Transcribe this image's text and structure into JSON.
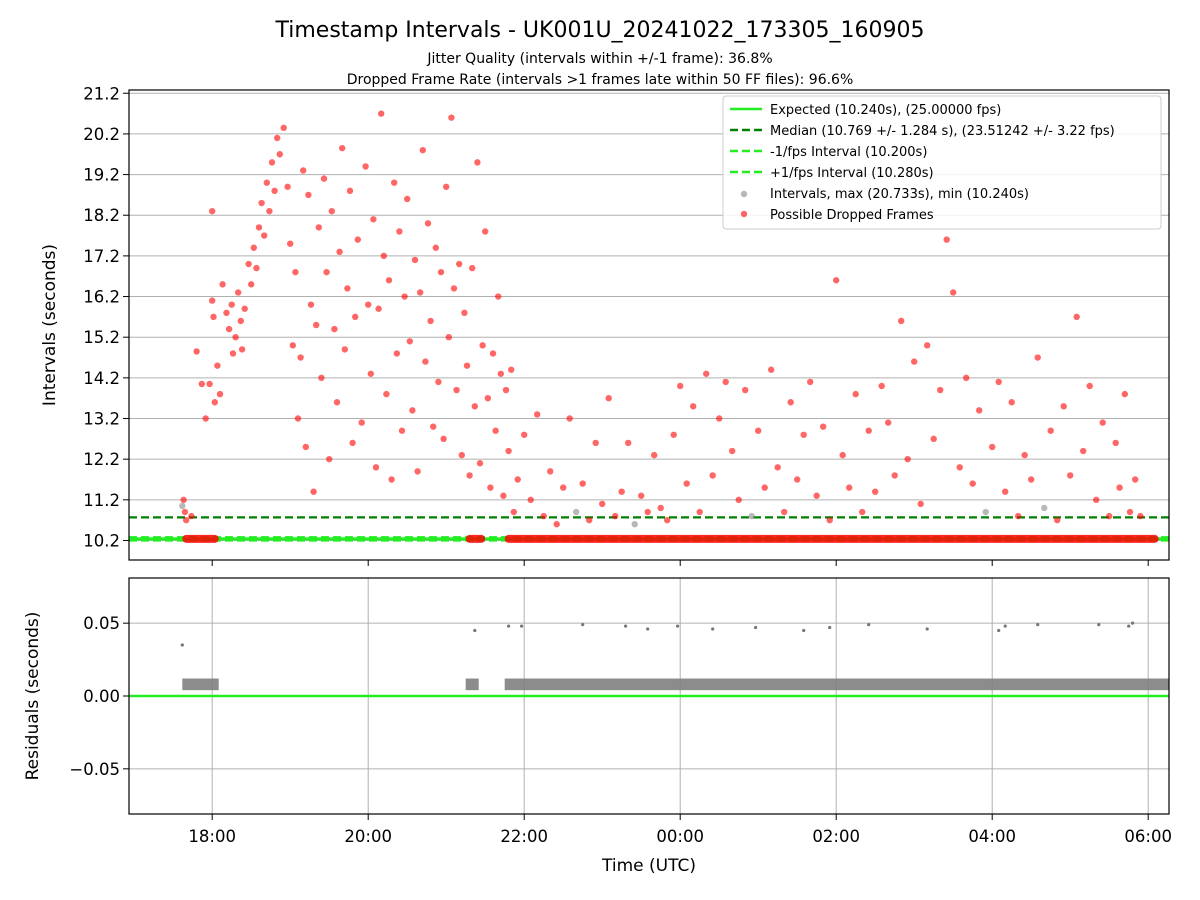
{
  "chart_data": [
    {
      "type": "scatter",
      "title": "Timestamp Intervals - UK001U_20241022_173305_160905",
      "subtitle_lines": [
        "Jitter Quality (intervals within +/-1 frame): 36.8%",
        "Dropped Frame Rate (intervals >1 frames late within 50 FF files): 96.6%"
      ],
      "xlabel": "",
      "ylabel": "Intervals (seconds)",
      "x_axis": {
        "unit": "time (UTC)",
        "range": [
          "16:56",
          "06:16"
        ]
      },
      "ylim": [
        9.72,
        21.28
      ],
      "yticks": [
        "10.2",
        "11.2",
        "12.2",
        "13.2",
        "14.2",
        "15.2",
        "16.2",
        "17.2",
        "18.2",
        "19.2",
        "20.2",
        "21.2"
      ],
      "grid": true,
      "legend_position": "top-right",
      "reference_lines": [
        {
          "label": "Expected (10.240s), (25.00000 fps)",
          "y": 10.24,
          "style": "solid",
          "color": "#22ee22"
        },
        {
          "label": "Median (10.769 +/- 1.284 s), (23.51242 +/- 3.22 fps)",
          "y": 10.769,
          "style": "dashed",
          "color": "#008000"
        },
        {
          "label": "-1/fps Interval (10.200s)",
          "y": 10.2,
          "style": "dashed",
          "color": "#22ee22"
        },
        {
          "label": "+1/fps Interval (10.280s)",
          "y": 10.28,
          "style": "dashed",
          "color": "#22ee22"
        }
      ],
      "scatter_series": [
        {
          "label": "Intervals, max (20.733s), min (10.240s)",
          "color": "#888888"
        },
        {
          "label": "Possible Dropped Frames",
          "color": "#ff0000"
        }
      ],
      "points": [
        [
          "17:37",
          11.05
        ],
        [
          "17:38",
          11.2
        ],
        [
          "17:39",
          10.9
        ],
        [
          "17:40",
          10.7
        ],
        [
          "17:44",
          10.8
        ],
        [
          "17:48",
          14.85
        ],
        [
          "17:52",
          14.05
        ],
        [
          "17:55",
          13.2
        ],
        [
          "17:58",
          14.05
        ],
        [
          "18:00",
          16.1
        ],
        [
          "18:00",
          18.3
        ],
        [
          "18:01",
          15.7
        ],
        [
          "18:02",
          13.6
        ],
        [
          "18:04",
          14.5
        ],
        [
          "18:06",
          13.8
        ],
        [
          "18:08",
          16.5
        ],
        [
          "18:11",
          15.8
        ],
        [
          "18:13",
          15.4
        ],
        [
          "18:15",
          16.0
        ],
        [
          "18:16",
          14.8
        ],
        [
          "18:18",
          15.2
        ],
        [
          "18:20",
          16.3
        ],
        [
          "18:22",
          15.6
        ],
        [
          "18:23",
          14.9
        ],
        [
          "18:25",
          15.9
        ],
        [
          "18:28",
          17.0
        ],
        [
          "18:30",
          16.5
        ],
        [
          "18:32",
          17.4
        ],
        [
          "18:34",
          16.9
        ],
        [
          "18:36",
          17.9
        ],
        [
          "18:38",
          18.5
        ],
        [
          "18:40",
          17.7
        ],
        [
          "18:42",
          19.0
        ],
        [
          "18:44",
          18.3
        ],
        [
          "18:46",
          19.5
        ],
        [
          "18:48",
          18.8
        ],
        [
          "18:50",
          20.1
        ],
        [
          "18:52",
          19.7
        ],
        [
          "18:55",
          20.35
        ],
        [
          "18:58",
          18.9
        ],
        [
          "19:00",
          17.5
        ],
        [
          "19:02",
          15.0
        ],
        [
          "19:04",
          16.8
        ],
        [
          "19:06",
          13.2
        ],
        [
          "19:08",
          14.7
        ],
        [
          "19:10",
          19.3
        ],
        [
          "19:12",
          12.5
        ],
        [
          "19:14",
          18.7
        ],
        [
          "19:16",
          16.0
        ],
        [
          "19:18",
          11.4
        ],
        [
          "19:20",
          15.5
        ],
        [
          "19:22",
          17.9
        ],
        [
          "19:24",
          14.2
        ],
        [
          "19:26",
          19.1
        ],
        [
          "19:28",
          16.8
        ],
        [
          "19:30",
          12.2
        ],
        [
          "19:32",
          18.3
        ],
        [
          "19:34",
          15.4
        ],
        [
          "19:36",
          13.6
        ],
        [
          "19:38",
          17.3
        ],
        [
          "19:40",
          19.85
        ],
        [
          "19:42",
          14.9
        ],
        [
          "19:44",
          16.4
        ],
        [
          "19:46",
          18.8
        ],
        [
          "19:48",
          12.6
        ],
        [
          "19:50",
          15.7
        ],
        [
          "19:52",
          17.6
        ],
        [
          "19:55",
          13.1
        ],
        [
          "19:58",
          19.4
        ],
        [
          "20:00",
          16.0
        ],
        [
          "20:02",
          14.3
        ],
        [
          "20:04",
          18.1
        ],
        [
          "20:06",
          12.0
        ],
        [
          "20:08",
          15.9
        ],
        [
          "20:10",
          20.7
        ],
        [
          "20:12",
          17.2
        ],
        [
          "20:14",
          13.8
        ],
        [
          "20:16",
          16.6
        ],
        [
          "20:18",
          11.7
        ],
        [
          "20:20",
          19.0
        ],
        [
          "20:22",
          14.8
        ],
        [
          "20:24",
          17.8
        ],
        [
          "20:26",
          12.9
        ],
        [
          "20:28",
          16.2
        ],
        [
          "20:30",
          18.6
        ],
        [
          "20:32",
          15.1
        ],
        [
          "20:34",
          13.4
        ],
        [
          "20:36",
          17.1
        ],
        [
          "20:38",
          11.9
        ],
        [
          "20:40",
          16.3
        ],
        [
          "20:42",
          19.8
        ],
        [
          "20:44",
          14.6
        ],
        [
          "20:46",
          18.0
        ],
        [
          "20:48",
          15.6
        ],
        [
          "20:50",
          13.0
        ],
        [
          "20:52",
          17.4
        ],
        [
          "20:54",
          14.1
        ],
        [
          "20:56",
          16.8
        ],
        [
          "20:58",
          12.7
        ],
        [
          "21:00",
          18.9
        ],
        [
          "21:02",
          15.2
        ],
        [
          "21:04",
          20.6
        ],
        [
          "21:06",
          16.4
        ],
        [
          "21:08",
          13.9
        ],
        [
          "21:10",
          17.0
        ],
        [
          "21:12",
          12.3
        ],
        [
          "21:14",
          15.8
        ],
        [
          "21:16",
          14.5
        ],
        [
          "21:18",
          11.8
        ],
        [
          "21:20",
          16.9
        ],
        [
          "21:22",
          13.5
        ],
        [
          "21:24",
          19.5
        ],
        [
          "21:26",
          12.1
        ],
        [
          "21:28",
          15.0
        ],
        [
          "21:30",
          17.8
        ],
        [
          "21:32",
          13.7
        ],
        [
          "21:34",
          11.5
        ],
        [
          "21:36",
          14.8
        ],
        [
          "21:38",
          12.9
        ],
        [
          "21:40",
          16.2
        ],
        [
          "21:42",
          14.3
        ],
        [
          "21:44",
          11.3
        ],
        [
          "21:46",
          13.9
        ],
        [
          "21:48",
          12.4
        ],
        [
          "21:50",
          14.4
        ],
        [
          "21:52",
          10.9
        ],
        [
          "21:55",
          11.7
        ],
        [
          "22:00",
          12.8
        ],
        [
          "22:05",
          11.2
        ],
        [
          "22:10",
          13.3
        ],
        [
          "22:15",
          10.8
        ],
        [
          "22:20",
          11.9
        ],
        [
          "22:25",
          10.6
        ],
        [
          "22:30",
          11.5
        ],
        [
          "22:35",
          13.2
        ],
        [
          "22:40",
          10.9
        ],
        [
          "22:45",
          11.6
        ],
        [
          "22:50",
          10.7
        ],
        [
          "22:55",
          12.6
        ],
        [
          "23:00",
          11.1
        ],
        [
          "23:05",
          13.7
        ],
        [
          "23:10",
          10.8
        ],
        [
          "23:15",
          11.4
        ],
        [
          "23:20",
          12.6
        ],
        [
          "23:25",
          10.6
        ],
        [
          "23:30",
          11.3
        ],
        [
          "23:35",
          10.9
        ],
        [
          "23:40",
          12.3
        ],
        [
          "23:45",
          11.0
        ],
        [
          "23:50",
          10.7
        ],
        [
          "23:55",
          12.8
        ],
        [
          "00:00",
          14.0
        ],
        [
          "00:05",
          11.6
        ],
        [
          "00:10",
          13.5
        ],
        [
          "00:15",
          10.9
        ],
        [
          "00:20",
          14.3
        ],
        [
          "00:25",
          11.8
        ],
        [
          "00:30",
          13.2
        ],
        [
          "00:35",
          14.1
        ],
        [
          "00:40",
          12.4
        ],
        [
          "00:45",
          11.2
        ],
        [
          "00:50",
          13.9
        ],
        [
          "00:55",
          10.8
        ],
        [
          "01:00",
          12.9
        ],
        [
          "01:05",
          11.5
        ],
        [
          "01:10",
          14.4
        ],
        [
          "01:15",
          12.0
        ],
        [
          "01:20",
          10.9
        ],
        [
          "01:25",
          13.6
        ],
        [
          "01:30",
          11.7
        ],
        [
          "01:35",
          12.8
        ],
        [
          "01:40",
          14.1
        ],
        [
          "01:45",
          11.3
        ],
        [
          "01:50",
          13.0
        ],
        [
          "01:55",
          10.7
        ],
        [
          "02:00",
          16.6
        ],
        [
          "02:05",
          12.3
        ],
        [
          "02:10",
          11.5
        ],
        [
          "02:15",
          13.8
        ],
        [
          "02:20",
          10.9
        ],
        [
          "02:25",
          12.9
        ],
        [
          "02:30",
          11.4
        ],
        [
          "02:35",
          14.0
        ],
        [
          "02:40",
          13.1
        ],
        [
          "02:45",
          11.8
        ],
        [
          "02:50",
          15.6
        ],
        [
          "02:55",
          12.2
        ],
        [
          "03:00",
          14.6
        ],
        [
          "03:05",
          11.1
        ],
        [
          "03:10",
          15.0
        ],
        [
          "03:15",
          12.7
        ],
        [
          "03:20",
          13.9
        ],
        [
          "03:25",
          17.6
        ],
        [
          "03:30",
          16.3
        ],
        [
          "03:35",
          12.0
        ],
        [
          "03:40",
          14.2
        ],
        [
          "03:45",
          11.6
        ],
        [
          "03:50",
          13.4
        ],
        [
          "03:55",
          10.9
        ],
        [
          "04:00",
          12.5
        ],
        [
          "04:05",
          14.1
        ],
        [
          "04:10",
          11.4
        ],
        [
          "04:15",
          13.6
        ],
        [
          "04:20",
          10.8
        ],
        [
          "04:25",
          12.3
        ],
        [
          "04:30",
          11.7
        ],
        [
          "04:35",
          14.7
        ],
        [
          "04:40",
          11.0
        ],
        [
          "04:45",
          12.9
        ],
        [
          "04:50",
          10.7
        ],
        [
          "04:55",
          13.5
        ],
        [
          "05:00",
          11.8
        ],
        [
          "05:05",
          15.7
        ],
        [
          "05:10",
          12.4
        ],
        [
          "05:15",
          14.0
        ],
        [
          "05:20",
          11.2
        ],
        [
          "05:25",
          13.1
        ],
        [
          "05:30",
          10.8
        ],
        [
          "05:35",
          12.6
        ],
        [
          "05:38",
          11.5
        ],
        [
          "05:42",
          13.8
        ],
        [
          "05:46",
          10.9
        ],
        [
          "05:50",
          11.7
        ],
        [
          "05:54",
          10.8
        ]
      ],
      "dense_band": {
        "y": 10.24,
        "segments": [
          [
            "17:37",
            "18:05"
          ],
          [
            "21:15",
            "21:30"
          ],
          [
            "21:45",
            "06:08"
          ]
        ]
      },
      "red_point_fraction": 0.966
    },
    {
      "type": "scatter",
      "xlabel": "Time (UTC)",
      "ylabel": "Residuals (seconds)",
      "x_axis": {
        "unit": "time (UTC)",
        "range": [
          "16:56",
          "06:16"
        ]
      },
      "ylim": [
        -0.081,
        0.081
      ],
      "yticks": [
        "0.05",
        "0.00",
        "−0.05"
      ],
      "xticks": [
        "18:00",
        "20:00",
        "22:00",
        "00:00",
        "02:00",
        "04:00",
        "06:00"
      ],
      "grid": true,
      "reference_line": {
        "y": 0.0,
        "color": "#22ee22"
      },
      "band": {
        "y_min": 0.004,
        "y_max": 0.012,
        "segments": [
          [
            "17:37",
            "18:05"
          ],
          [
            "21:15",
            "21:25"
          ],
          [
            "21:45",
            "06:16"
          ]
        ]
      },
      "outliers": [
        [
          "17:37",
          0.035
        ],
        [
          "21:22",
          0.045
        ],
        [
          "21:48",
          0.048
        ],
        [
          "21:58",
          0.048
        ],
        [
          "22:45",
          0.049
        ],
        [
          "23:18",
          0.048
        ],
        [
          "23:35",
          0.046
        ],
        [
          "23:58",
          0.048
        ],
        [
          "00:25",
          0.046
        ],
        [
          "00:58",
          0.047
        ],
        [
          "01:35",
          0.045
        ],
        [
          "01:55",
          0.047
        ],
        [
          "02:25",
          0.049
        ],
        [
          "03:10",
          0.046
        ],
        [
          "04:05",
          0.045
        ],
        [
          "04:10",
          0.048
        ],
        [
          "04:35",
          0.049
        ],
        [
          "05:22",
          0.049
        ],
        [
          "05:45",
          0.048
        ],
        [
          "05:48",
          0.05
        ]
      ]
    }
  ]
}
